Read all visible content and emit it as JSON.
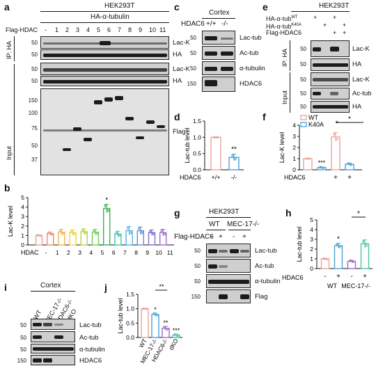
{
  "panels": {
    "a": {
      "letter": "a",
      "cell_line": "HEK293T",
      "construct": "HA-α-tubulin",
      "row_label": "Flag-HDAC",
      "lanes": [
        "-",
        "1",
        "2",
        "3",
        "4",
        "5",
        "6",
        "7",
        "8",
        "9",
        "10",
        "11"
      ],
      "ip_label": "IP: HA",
      "input_label": "Input",
      "blots": [
        "Lac-K",
        "HA",
        "Lac-K",
        "HA",
        "Flag"
      ],
      "mw": [
        "50",
        "50",
        "50",
        "50",
        "150",
        "100",
        "75",
        "50",
        "37"
      ]
    },
    "b": {
      "letter": "b",
      "ylabel": "Lac-K level",
      "xrow_label": "HDAC",
      "categories": [
        "-",
        "1",
        "2",
        "3",
        "4",
        "5",
        "6",
        "7",
        "8",
        "9",
        "10",
        "11"
      ],
      "values": [
        1.0,
        1.2,
        1.35,
        1.3,
        1.4,
        1.35,
        3.85,
        1.15,
        1.5,
        1.5,
        1.3,
        1.3
      ],
      "errors": [
        0.05,
        0.15,
        0.3,
        0.3,
        0.3,
        0.3,
        0.45,
        0.3,
        0.45,
        0.4,
        0.3,
        0.35
      ],
      "colors": [
        "#e8a49a",
        "#e88a70",
        "#f4b24a",
        "#f1d041",
        "#b5d44a",
        "#6ccf58",
        "#3fae4f",
        "#45c6a8",
        "#4fb3d9",
        "#5d8fd6",
        "#7c6fd1",
        "#9a6cc8"
      ],
      "yticks": [
        "0",
        "1",
        "2",
        "3",
        "4",
        "5"
      ],
      "ylim": [
        0,
        5
      ],
      "star": "*"
    },
    "c": {
      "letter": "c",
      "tissue": "Cortex",
      "genotype_label": "HDAC6",
      "genotypes": [
        "+/+",
        "-/-"
      ],
      "blots": [
        "Lac-tub",
        "Ac-tub",
        "α-tubulin",
        "HDAC6"
      ],
      "mw": [
        "50",
        "50",
        "50",
        "150"
      ]
    },
    "d": {
      "letter": "d",
      "ylabel": "Lac-tub level",
      "xrow_label": "HDAC6",
      "categories": [
        "+/+",
        "-/-"
      ],
      "values": [
        1.0,
        0.38
      ],
      "errors": [
        0.0,
        0.1
      ],
      "colors": [
        "#e8a49a",
        "#4aa3d9"
      ],
      "yticks": [
        "0.0",
        "0.5",
        "1.0",
        "1.5"
      ],
      "ylim": [
        0,
        1.5
      ],
      "star": "**"
    },
    "e": {
      "letter": "e",
      "cell_line": "HEK293T",
      "rows": [
        {
          "label": "HA-α-tub",
          "sup": "WT",
          "marks": [
            "+",
            "",
            "+",
            ""
          ]
        },
        {
          "label": "HA-α-tub",
          "sup": "K40A",
          "marks": [
            "",
            "+",
            "",
            "+"
          ]
        },
        {
          "label": "Flag-HDAC6",
          "sup": "",
          "marks": [
            "",
            "",
            "+",
            "+"
          ]
        }
      ],
      "ip_label": "IP: HA",
      "input_label": "Input",
      "blots": [
        "Lac-K",
        "HA",
        "Lac-K",
        "Ac-tub",
        "HA"
      ],
      "mw": [
        "50",
        "50",
        "50",
        "50",
        "50"
      ]
    },
    "f": {
      "letter": "f",
      "ylabel": "Lac-K level",
      "xrow_label": "HDAC6",
      "legend": [
        "WT",
        "K40A"
      ],
      "legend_colors": [
        "#e8a49a",
        "#4aa3d9"
      ],
      "categories": [
        "WT",
        "K40A",
        "WT + HDAC6",
        "K40A + HDAC6"
      ],
      "marks": [
        "",
        "",
        "+",
        "+"
      ],
      "values": [
        1.0,
        0.2,
        2.95,
        0.5
      ],
      "errors": [
        0.0,
        0.05,
        0.4,
        0.1
      ],
      "colors": [
        "#e8a49a",
        "#4aa3d9",
        "#e8a49a",
        "#4aa3d9"
      ],
      "yticks": [
        "0",
        "1",
        "2",
        "3",
        "4"
      ],
      "ylim": [
        0,
        4
      ],
      "stars": [
        "***",
        "*",
        "*"
      ]
    },
    "g": {
      "letter": "g",
      "cell_line": "HEK293T",
      "groups": [
        "WT",
        "MEC-17-/-"
      ],
      "row_label": "Flag-HDAC6",
      "marks": [
        "-",
        "+",
        "-",
        "+"
      ],
      "blots": [
        "Lac-tub",
        "Ac-tub",
        "α-tubulin",
        "Flag"
      ],
      "mw": [
        "50",
        "50",
        "50",
        "150"
      ]
    },
    "h": {
      "letter": "h",
      "ylabel": "Lac-tub level",
      "xrow_label": "HDAC6",
      "marks": [
        "-",
        "+",
        "-",
        "+"
      ],
      "groups": [
        "WT",
        "MEC-17-/-"
      ],
      "values": [
        1.0,
        2.35,
        0.75,
        2.55
      ],
      "errors": [
        0.05,
        0.25,
        0.1,
        0.4
      ],
      "colors": [
        "#e8a49a",
        "#4aa3d9",
        "#9a6cc8",
        "#45c6a8"
      ],
      "yticks": [
        "0",
        "1",
        "2",
        "3",
        "4",
        "5"
      ],
      "ylim": [
        0,
        5
      ],
      "stars": [
        "*",
        "*"
      ]
    },
    "i": {
      "letter": "i",
      "tissue": "Cortex",
      "genotypes": [
        "WT",
        "MEC-17-/-",
        "HDAC6-/-",
        "dKO"
      ],
      "blots": [
        "Lac-tub",
        "Ac-tub",
        "α-tubulin",
        "HDAC6"
      ],
      "mw": [
        "50",
        "50",
        "50",
        "150"
      ]
    },
    "j": {
      "letter": "j",
      "ylabel": "Lac-tub level",
      "categories": [
        "WT",
        "MEC-17-/-",
        "HDAC6-/-",
        "dKO"
      ],
      "values": [
        1.0,
        0.8,
        0.32,
        0.08
      ],
      "errors": [
        0.0,
        0.05,
        0.07,
        0.04
      ],
      "colors": [
        "#e8a49a",
        "#4aa3d9",
        "#9a6cc8",
        "#45c6a8"
      ],
      "yticks": [
        "0.0",
        "0.5",
        "1.0",
        "1.5"
      ],
      "ylim": [
        0,
        1.5
      ],
      "stars": [
        "*",
        "**",
        "***",
        "**"
      ]
    }
  },
  "chart_data": [
    {
      "type": "bar",
      "panel": "b",
      "categories": [
        "-",
        "1",
        "2",
        "3",
        "4",
        "5",
        "6",
        "7",
        "8",
        "9",
        "10",
        "11"
      ],
      "values": [
        1.0,
        1.2,
        1.35,
        1.3,
        1.4,
        1.35,
        3.85,
        1.15,
        1.5,
        1.5,
        1.3,
        1.3
      ],
      "ylabel": "Lac-K level",
      "xlabel": "HDAC",
      "ylim": [
        0,
        5
      ]
    },
    {
      "type": "bar",
      "panel": "d",
      "categories": [
        "+/+",
        "-/-"
      ],
      "values": [
        1.0,
        0.38
      ],
      "ylabel": "Lac-tub level",
      "xlabel": "HDAC6",
      "ylim": [
        0,
        1.5
      ]
    },
    {
      "type": "bar",
      "panel": "f",
      "categories": [
        "WT",
        "K40A",
        "WT + HDAC6",
        "K40A + HDAC6"
      ],
      "values": [
        1.0,
        0.2,
        2.95,
        0.5
      ],
      "ylabel": "Lac-K level",
      "xlabel": "HDAC6",
      "ylim": [
        0,
        4
      ]
    },
    {
      "type": "bar",
      "panel": "h",
      "categories": [
        "WT -",
        "WT +",
        "MEC-17-/- -",
        "MEC-17-/- +"
      ],
      "values": [
        1.0,
        2.35,
        0.75,
        2.55
      ],
      "ylabel": "Lac-tub level",
      "xlabel": "HDAC6",
      "ylim": [
        0,
        5
      ]
    },
    {
      "type": "bar",
      "panel": "j",
      "categories": [
        "WT",
        "MEC-17-/-",
        "HDAC6-/-",
        "dKO"
      ],
      "values": [
        1.0,
        0.8,
        0.32,
        0.08
      ],
      "ylabel": "Lac-tub level",
      "ylim": [
        0,
        1.5
      ]
    }
  ]
}
